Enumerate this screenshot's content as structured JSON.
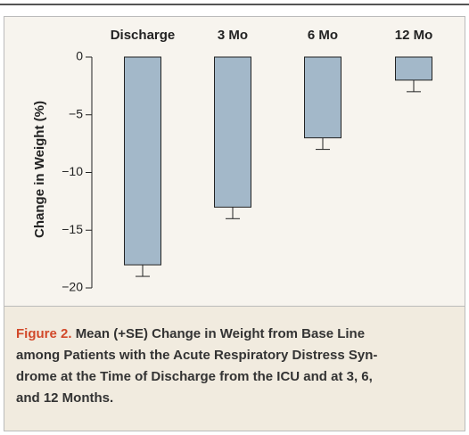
{
  "chart_data": {
    "type": "bar",
    "ylabel": "Change in Weight (%)",
    "categories": [
      "Discharge",
      "3 Mo",
      "6 Mo",
      "12 Mo"
    ],
    "values": [
      -18,
      -13,
      -7,
      -2
    ],
    "errors": [
      1,
      1,
      1,
      1
    ],
    "color": "#a3b8c9",
    "ylim": [
      -20,
      0
    ],
    "yticks": [
      {
        "value": 0,
        "label": "0"
      },
      {
        "value": -5,
        "label": "−5"
      },
      {
        "value": -10,
        "label": "−10"
      },
      {
        "value": -15,
        "label": "−15"
      },
      {
        "value": -20,
        "label": "−20"
      }
    ]
  },
  "caption": {
    "label": "Figure 2.",
    "lines": [
      "Mean (+SE) Change in Weight from Base Line",
      "among Patients with the Acute Respiratory Distress Syn-",
      "drome at the Time of Discharge from the ICU and at 3, 6,",
      "and 12 Months."
    ]
  }
}
